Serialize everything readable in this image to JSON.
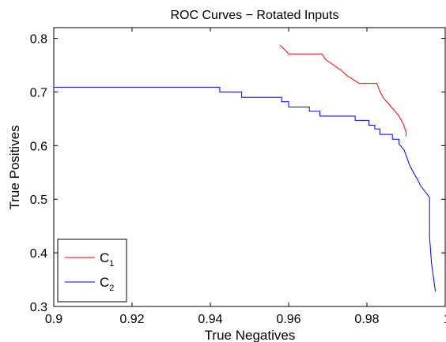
{
  "chart_data": {
    "type": "line",
    "title": "ROC Curves − Rotated Inputs",
    "xlabel": "True Negatives",
    "ylabel": "True Positives",
    "xlim": [
      0.9,
      1.0
    ],
    "ylim": [
      0.3,
      0.82
    ],
    "xticks": [
      0.9,
      0.92,
      0.94,
      0.96,
      0.98,
      1.0
    ],
    "xtick_labels": [
      "0.9",
      "0.92",
      "0.94",
      "0.96",
      "0.98",
      "1"
    ],
    "yticks": [
      0.3,
      0.4,
      0.5,
      0.6,
      0.7,
      0.8
    ],
    "ytick_labels": [
      "0.3",
      "0.4",
      "0.5",
      "0.6",
      "0.7",
      "0.8"
    ],
    "grid": false,
    "legend_position": "bottom-left",
    "series": [
      {
        "name": "C",
        "name_subscript": "1",
        "color": "#ff0000",
        "points": [
          [
            0.9578,
            0.787
          ],
          [
            0.9587,
            0.781
          ],
          [
            0.9594,
            0.776
          ],
          [
            0.96,
            0.771
          ],
          [
            0.9685,
            0.771
          ],
          [
            0.9695,
            0.76
          ],
          [
            0.9715,
            0.75
          ],
          [
            0.9735,
            0.74
          ],
          [
            0.975,
            0.73
          ],
          [
            0.9765,
            0.723
          ],
          [
            0.978,
            0.716
          ],
          [
            0.9825,
            0.716
          ],
          [
            0.9834,
            0.7
          ],
          [
            0.9843,
            0.688
          ],
          [
            0.9853,
            0.68
          ],
          [
            0.9862,
            0.672
          ],
          [
            0.9872,
            0.664
          ],
          [
            0.9882,
            0.655
          ],
          [
            0.9893,
            0.64
          ],
          [
            0.99,
            0.625
          ],
          [
            0.99,
            0.617
          ]
        ]
      },
      {
        "name": "C",
        "name_subscript": "2",
        "color": "#0000ff",
        "points": [
          [
            0.9,
            0.709
          ],
          [
            0.9424,
            0.709
          ],
          [
            0.9424,
            0.7
          ],
          [
            0.948,
            0.7
          ],
          [
            0.948,
            0.69
          ],
          [
            0.9582,
            0.69
          ],
          [
            0.9582,
            0.682
          ],
          [
            0.96,
            0.682
          ],
          [
            0.96,
            0.672
          ],
          [
            0.9653,
            0.672
          ],
          [
            0.9653,
            0.664
          ],
          [
            0.968,
            0.664
          ],
          [
            0.968,
            0.655
          ],
          [
            0.977,
            0.655
          ],
          [
            0.977,
            0.647
          ],
          [
            0.9805,
            0.647
          ],
          [
            0.9805,
            0.638
          ],
          [
            0.982,
            0.638
          ],
          [
            0.982,
            0.631
          ],
          [
            0.9833,
            0.631
          ],
          [
            0.9833,
            0.621
          ],
          [
            0.9865,
            0.621
          ],
          [
            0.9865,
            0.612
          ],
          [
            0.9882,
            0.612
          ],
          [
            0.9882,
            0.603
          ],
          [
            0.9895,
            0.592
          ],
          [
            0.9902,
            0.578
          ],
          [
            0.9908,
            0.565
          ],
          [
            0.9918,
            0.551
          ],
          [
            0.9928,
            0.538
          ],
          [
            0.9938,
            0.524
          ],
          [
            0.995,
            0.513
          ],
          [
            0.996,
            0.503
          ],
          [
            0.996,
            0.43
          ],
          [
            0.9965,
            0.38
          ],
          [
            0.9975,
            0.328
          ]
        ]
      }
    ]
  }
}
